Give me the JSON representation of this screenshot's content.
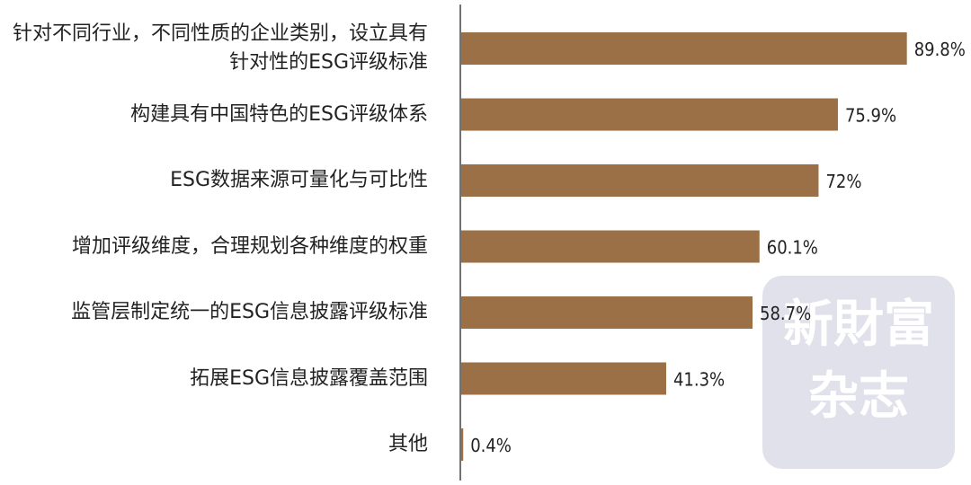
{
  "chart_data": {
    "type": "bar",
    "orientation": "horizontal",
    "categories": [
      "针对不同行业，不同性质的企业类别，设立具有针对性的ESG评级标准",
      "构建具有中国特色的ESG评级体系",
      "ESG数据来源可量化与可比性",
      "增加评级维度，合理规划各种维度的权重",
      "监管层制定统一的ESG信息披露评级标准",
      "拓展ESG信息披露覆盖范围",
      "其他"
    ],
    "values": [
      89.8,
      75.9,
      72,
      60.1,
      58.7,
      41.3,
      0.4
    ],
    "value_labels": [
      "89.8%",
      "75.9%",
      "72%",
      "60.1%",
      "58.7%",
      "41.3%",
      "0.4%"
    ],
    "color": "#9b7046",
    "watermark": [
      "新財富",
      "杂志"
    ]
  }
}
